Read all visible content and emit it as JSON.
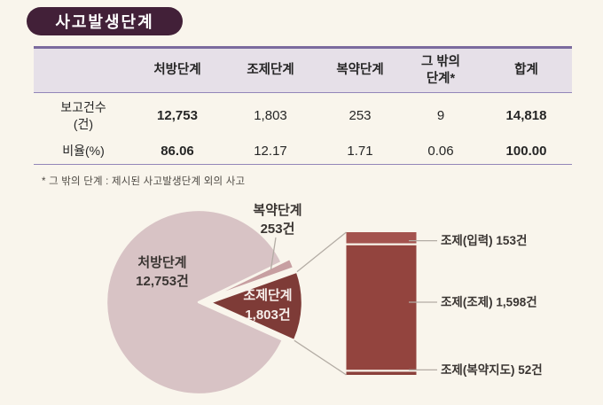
{
  "title": "사고발생단계",
  "table": {
    "corner": "",
    "headers": [
      "처방단계",
      "조제단계",
      "복약단계",
      "그 밖의\n단계*",
      "합계"
    ],
    "rows": [
      {
        "label": "보고건수\n(건)",
        "values": [
          "12,753",
          "1,803",
          "253",
          "9",
          "14,818"
        ]
      },
      {
        "label": "비율(%)",
        "values": [
          "86.06",
          "12.17",
          "1.71",
          "0.06",
          "100.00"
        ]
      }
    ]
  },
  "footnote": "* 그 밖의 단계 : 제시된 사고발생단계 외의 사고",
  "chart_data": [
    {
      "type": "pie",
      "labels": [
        "처방단계",
        "조제단계",
        "복약단계",
        "그 밖의 단계"
      ],
      "values": [
        12753,
        1803,
        253,
        9
      ],
      "unit": "건",
      "slice_labels": [
        "처방단계\n12,753건",
        "조제단계\n1,803건",
        "복약단계\n253건",
        ""
      ],
      "colors": [
        "#d8c3c5",
        "#7e3b37",
        "#c79fa1",
        "#d8c3c5"
      ],
      "legend": "none"
    },
    {
      "type": "bar",
      "stacked": true,
      "orientation": "vertical",
      "categories": [
        "조제(입력)",
        "조제(조제)",
        "조제(복약지도)"
      ],
      "values": [
        153,
        1598,
        52
      ],
      "total": 1803,
      "unit": "건",
      "labels": [
        "조제(입력) 153건",
        "조제(조제) 1,598건",
        "조제(복약지도) 52건"
      ],
      "colors": [
        "#a4534e",
        "#93443e",
        "#8b403b"
      ],
      "grid": false,
      "legend": "none"
    }
  ],
  "colors": {
    "background": "#f9f5ec",
    "title_pill": "#422038",
    "table_header_bg": "#e6e0e8",
    "table_border": "#9386b8",
    "connector_line": "#b3aca4",
    "label_text": "#3a3532",
    "wedge_label_text": "#f6eeea"
  }
}
